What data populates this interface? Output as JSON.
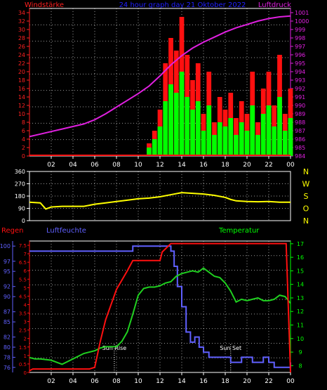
{
  "header": {
    "left": "Windstärke",
    "center": "24 hour graph day   21 Oktober 2022",
    "right": "Luftdruck"
  },
  "colors": {
    "wind_axis": "#ff2020",
    "pressure": "#e020e0",
    "header": "#2020ff",
    "wind_gust": "#ff1010",
    "wind_avg": "#00ff00",
    "direction": "#ffff00",
    "rain": "#ff1010",
    "humidity": "#6060ff",
    "temperature": "#20d020",
    "temp_axis": "#00ff00",
    "grid": "#ffffff",
    "sun": "#ffffff"
  },
  "chart_data": [
    {
      "type": "line",
      "title": "24 hour graph day   21 Oktober 2022",
      "x_ticks": [
        "02",
        "04",
        "06",
        "08",
        "10",
        "12",
        "14",
        "16",
        "18",
        "20",
        "22",
        "00"
      ],
      "x_range_hours": [
        0,
        24
      ],
      "left_axis": {
        "label": "Windstärke",
        "ticks": [
          0,
          2,
          4,
          6,
          8,
          10,
          12,
          14,
          16,
          18,
          20,
          22,
          24,
          26,
          28,
          30,
          32,
          34
        ],
        "range": [
          0,
          35
        ]
      },
      "right_axis": {
        "label": "Luftdruck",
        "ticks": [
          984,
          985,
          986,
          987,
          988,
          989,
          990,
          991,
          992,
          993,
          994,
          995,
          996,
          997,
          998,
          999,
          1000,
          1001
        ],
        "range": [
          984,
          1001.5
        ]
      },
      "series": [
        {
          "name": "Luftdruck",
          "axis": "right",
          "x": [
            0,
            1,
            2,
            3,
            4,
            5,
            6,
            7,
            8,
            9,
            10,
            11,
            12,
            13,
            14,
            15,
            16,
            17,
            18,
            19,
            20,
            21,
            22,
            23,
            24
          ],
          "values": [
            986.3,
            986.6,
            986.9,
            987.2,
            987.5,
            987.8,
            988.3,
            989.0,
            989.8,
            990.6,
            991.4,
            992.3,
            993.5,
            994.8,
            995.9,
            996.8,
            997.5,
            998.1,
            998.7,
            999.2,
            999.6,
            1000.0,
            1000.3,
            1000.5,
            1000.6
          ]
        },
        {
          "name": "Windböen",
          "axis": "left",
          "kind": "bars",
          "x": [
            0,
            2,
            4,
            6,
            8,
            10,
            10.5,
            11,
            11.5,
            12,
            12.5,
            13,
            13.5,
            14,
            14.5,
            15,
            15.5,
            16,
            16.5,
            17,
            17.5,
            18,
            18.5,
            19,
            19.5,
            20,
            20.5,
            21,
            21.5,
            22,
            22.5,
            23,
            23.5,
            24
          ],
          "values": [
            0,
            0,
            0,
            0,
            0,
            0,
            0,
            3,
            6,
            11,
            22,
            28,
            25,
            33,
            24,
            18,
            22,
            10,
            20,
            8,
            14,
            11,
            15,
            9,
            13,
            10,
            20,
            8,
            16,
            20,
            12,
            24,
            10,
            16
          ]
        },
        {
          "name": "Wind",
          "axis": "left",
          "kind": "bars",
          "x": [
            0,
            2,
            4,
            6,
            8,
            10,
            10.5,
            11,
            11.5,
            12,
            12.5,
            13,
            13.5,
            14,
            14.5,
            15,
            15.5,
            16,
            16.5,
            17,
            17.5,
            18,
            18.5,
            19,
            19.5,
            20,
            20.5,
            21,
            21.5,
            22,
            22.5,
            23,
            23.5,
            24
          ],
          "values": [
            0,
            0,
            0,
            0,
            0,
            0,
            0,
            2,
            4,
            7,
            13,
            17,
            15,
            20,
            14,
            11,
            13,
            6,
            12,
            5,
            8,
            7,
            9,
            5,
            8,
            6,
            12,
            5,
            10,
            12,
            7,
            14,
            6,
            9
          ]
        }
      ]
    },
    {
      "type": "line",
      "x_range_hours": [
        0,
        24
      ],
      "left_axis": {
        "ticks": [
          0,
          45,
          90,
          135,
          180,
          225,
          270,
          315,
          360
        ],
        "range": [
          0,
          360
        ]
      },
      "right_axis": {
        "labels": [
          "N",
          "W",
          "S",
          "O",
          "N"
        ]
      },
      "series": [
        {
          "name": "Windrichtung",
          "x": [
            0,
            1,
            1.5,
            2,
            3,
            4,
            5,
            6,
            7,
            8,
            9,
            10,
            11,
            12,
            13,
            14,
            15,
            16,
            17,
            18,
            18.5,
            19,
            20,
            21,
            22,
            23,
            24
          ],
          "values": [
            135,
            130,
            85,
            100,
            105,
            105,
            105,
            120,
            130,
            140,
            150,
            160,
            165,
            175,
            190,
            205,
            200,
            195,
            185,
            170,
            155,
            145,
            140,
            138,
            140,
            135,
            135
          ]
        }
      ]
    },
    {
      "type": "line",
      "left_axis_rain": {
        "label": "Regen",
        "ticks": [
          0,
          0.5,
          1,
          1.5,
          2,
          2.5,
          3,
          3.5,
          4,
          4.5,
          5,
          5.5,
          6,
          6.5,
          7,
          7.5
        ],
        "range": [
          0,
          7.75
        ]
      },
      "left_axis_humidity": {
        "label": "Luftfeuchte",
        "ticks": [
          76,
          78,
          80,
          82,
          85,
          87,
          90,
          92,
          95,
          97,
          100
        ],
        "range": [
          75,
          101
        ]
      },
      "right_axis": {
        "label": "Temperatur",
        "ticks": [
          8,
          9,
          10,
          11,
          12,
          13,
          14,
          15,
          16,
          17
        ],
        "range": [
          7.5,
          17.2
        ]
      },
      "annotations": [
        {
          "text": "Sun Rise",
          "x": 7.8
        },
        {
          "text": "Sun Set",
          "x": 18.5
        }
      ],
      "series": [
        {
          "name": "Regen",
          "x": [
            0,
            0.3,
            1,
            2,
            3,
            4,
            5,
            5.5,
            6,
            6.5,
            7,
            8,
            9,
            9.5,
            10,
            11,
            12,
            12.2,
            13,
            14,
            16,
            18,
            20,
            22,
            23.6,
            24
          ],
          "values": [
            0.1,
            0.2,
            0.2,
            0.2,
            0.2,
            0.2,
            0.2,
            0.2,
            0.3,
            1.8,
            3.1,
            4.9,
            6.0,
            6.6,
            6.6,
            6.6,
            6.6,
            7.1,
            7.6,
            7.6,
            7.6,
            7.6,
            7.6,
            7.6,
            7.6,
            0
          ]
        },
        {
          "name": "Luftfeuchte",
          "x": [
            0,
            2,
            4,
            6,
            8,
            9,
            9.5,
            10,
            11,
            12,
            13,
            13.3,
            13.6,
            14,
            14.4,
            14.8,
            15.2,
            15.6,
            16,
            16.5,
            17,
            17.5,
            18,
            18.5,
            19,
            19.5,
            20,
            20.5,
            21,
            21.5,
            22,
            22.5,
            23,
            23.5,
            24
          ],
          "values": [
            99,
            99,
            99,
            99,
            99,
            99,
            100,
            100,
            100,
            100,
            99,
            96,
            92,
            88,
            83,
            81,
            82,
            80,
            79,
            78,
            78,
            78,
            78,
            77,
            77,
            78,
            78,
            77,
            77,
            78,
            77,
            76,
            76,
            76,
            77
          ]
        },
        {
          "name": "Temperatur",
          "x": [
            0,
            0.5,
            1,
            2,
            3,
            4,
            5,
            6,
            6.5,
            7,
            7.5,
            8,
            8.5,
            9,
            9.5,
            10,
            10.5,
            11,
            11.5,
            12,
            12.5,
            13,
            13.5,
            14,
            14.5,
            15,
            15.5,
            16,
            16.5,
            17,
            17.5,
            18,
            18.5,
            19,
            19.5,
            20,
            20.5,
            21,
            21.5,
            22,
            22.5,
            23,
            23.5,
            24
          ],
          "values": [
            8.6,
            8.5,
            8.5,
            8.4,
            8.1,
            8.5,
            8.9,
            9.1,
            9.3,
            9.4,
            9.4,
            9.4,
            9.8,
            10.5,
            11.8,
            13.2,
            13.7,
            13.8,
            13.8,
            13.9,
            14.1,
            14.2,
            14.6,
            14.8,
            14.9,
            15.0,
            14.9,
            15.2,
            14.9,
            14.6,
            14.5,
            14.1,
            13.5,
            12.7,
            12.9,
            12.8,
            12.9,
            13.0,
            12.8,
            12.8,
            12.9,
            13.2,
            13.1,
            12.6
          ]
        }
      ]
    }
  ]
}
